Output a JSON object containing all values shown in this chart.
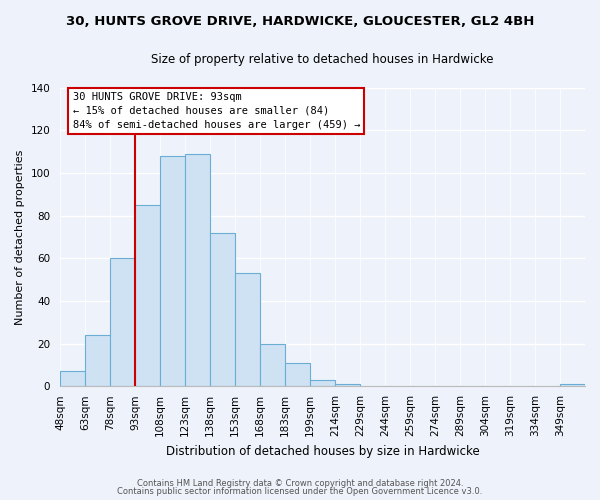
{
  "title_line1": "30, HUNTS GROVE DRIVE, HARDWICKE, GLOUCESTER, GL2 4BH",
  "title_line2": "Size of property relative to detached houses in Hardwicke",
  "xlabel": "Distribution of detached houses by size in Hardwicke",
  "ylabel": "Number of detached properties",
  "bin_labels": [
    "48sqm",
    "63sqm",
    "78sqm",
    "93sqm",
    "108sqm",
    "123sqm",
    "138sqm",
    "153sqm",
    "168sqm",
    "183sqm",
    "199sqm",
    "214sqm",
    "229sqm",
    "244sqm",
    "259sqm",
    "274sqm",
    "289sqm",
    "304sqm",
    "319sqm",
    "334sqm",
    "349sqm"
  ],
  "bar_heights": [
    7,
    24,
    60,
    85,
    108,
    109,
    72,
    53,
    20,
    11,
    3,
    1,
    0,
    0,
    0,
    0,
    0,
    0,
    0,
    0,
    1
  ],
  "bar_color": "#cfe2f3",
  "bar_edge_color": "#6aaed6",
  "vline_x_idx": 3,
  "vline_color": "#cc0000",
  "ylim": [
    0,
    140
  ],
  "yticks": [
    0,
    20,
    40,
    60,
    80,
    100,
    120,
    140
  ],
  "annotation_title": "30 HUNTS GROVE DRIVE: 93sqm",
  "annotation_line1": "← 15% of detached houses are smaller (84)",
  "annotation_line2": "84% of semi-detached houses are larger (459) →",
  "annotation_box_color": "#ffffff",
  "annotation_box_edge": "#cc0000",
  "bg_color": "#eef2fa",
  "footer_line1": "Contains HM Land Registry data © Crown copyright and database right 2024.",
  "footer_line2": "Contains public sector information licensed under the Open Government Licence v3.0.",
  "title_fontsize": 9.5,
  "subtitle_fontsize": 8.5,
  "ylabel_fontsize": 8,
  "xlabel_fontsize": 8.5,
  "tick_fontsize": 7.5,
  "annotation_fontsize": 7.5,
  "footer_fontsize": 6.0
}
